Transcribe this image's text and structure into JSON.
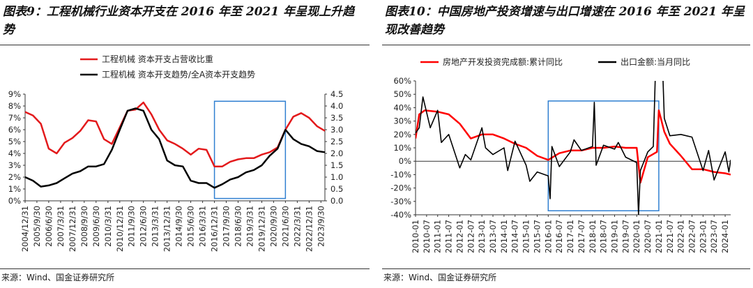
{
  "panel1": {
    "title": "图表9：工程机械行业资本开支在 2016 年至 2021 年呈现上升趋势",
    "source": "来源：Wind、国金证券研究所",
    "chart_data": {
      "type": "line",
      "x": [
        "2004/12/31",
        "2005/6/30",
        "2005/12/31",
        "2006/6/30",
        "2006/12/31",
        "2007/6/30",
        "2007/12/31",
        "2008/6/30",
        "2008/12/31",
        "2009/6/30",
        "2009/12/31",
        "2010/6/30",
        "2010/12/31",
        "2011/6/30",
        "2011/12/31",
        "2012/6/30",
        "2012/12/31",
        "2013/6/30",
        "2013/12/31",
        "2014/6/30",
        "2014/12/31",
        "2015/6/30",
        "2015/12/31",
        "2016/6/30",
        "2016/12/31",
        "2017/6/30",
        "2017/12/31",
        "2018/6/30",
        "2018/12/31",
        "2019/6/30",
        "2019/12/31",
        "2020/6/30",
        "2020/12/31",
        "2021/6/30",
        "2021/12/31",
        "2022/6/30",
        "2022/12/31",
        "2023/6/30",
        "2023/12/31"
      ],
      "xticks": [
        "2004/12/31",
        "2005/9/30",
        "2006/6/30",
        "2007/3/31",
        "2007/12/31",
        "2008/9/30",
        "2009/6/30",
        "2010/3/31",
        "2010/12/31",
        "2011/9/30",
        "2012/6/30",
        "2013/3/31",
        "2013/12/31",
        "2014/9/30",
        "2015/6/30",
        "2016/3/31",
        "2016/12/31",
        "2017/9/30",
        "2018/6/30",
        "2019/3/31",
        "2019/12/31",
        "2020/9/30",
        "2021/6/30",
        "2022/3/31",
        "2022/12/31",
        "2023/9/30"
      ],
      "series": [
        {
          "name": "工程机械 资本开支占营收比重",
          "axis": "left",
          "color": "#e31a1c",
          "values": [
            7.5,
            7.2,
            6.5,
            4.4,
            4.0,
            4.9,
            5.3,
            5.9,
            6.8,
            6.7,
            5.2,
            4.8,
            6.2,
            7.6,
            7.7,
            8.3,
            7.3,
            6.0,
            5.1,
            4.8,
            4.4,
            3.9,
            4.4,
            4.3,
            2.9,
            2.9,
            3.3,
            3.5,
            3.6,
            3.6,
            3.9,
            4.1,
            4.5,
            6.0,
            7.1,
            7.4,
            7.0,
            6.3,
            5.9
          ]
        },
        {
          "name": "工程机械 资本开支趋势/全A资本开支趋势",
          "axis": "right",
          "color": "#000000",
          "values": [
            1.0,
            0.85,
            0.6,
            0.65,
            0.75,
            0.95,
            1.15,
            1.25,
            1.45,
            1.45,
            1.55,
            2.15,
            3.0,
            3.8,
            3.9,
            3.8,
            3.0,
            2.6,
            1.7,
            1.5,
            1.45,
            0.85,
            0.75,
            0.75,
            0.55,
            0.7,
            0.9,
            1.0,
            1.2,
            1.3,
            1.5,
            1.9,
            2.2,
            3.0,
            2.6,
            2.4,
            2.3,
            2.1,
            2.05
          ]
        }
      ],
      "y_left": {
        "ticks": [
          "0%",
          "1%",
          "2%",
          "3%",
          "4%",
          "5%",
          "6%",
          "7%",
          "8%",
          "9%"
        ],
        "ylim": [
          0,
          9
        ]
      },
      "y_right": {
        "ticks": [
          "0.0",
          "0.5",
          "1.0",
          "1.5",
          "2.0",
          "2.5",
          "3.0",
          "3.5",
          "4.0",
          "4.5"
        ],
        "ylim": [
          0,
          4.5
        ]
      },
      "highlight": {
        "from": "2016/12/31",
        "to": "2021/6/30",
        "color": "#2f7fd1"
      },
      "legend_placement": "top-left",
      "grid": false
    }
  },
  "panel2": {
    "title": "图表10：中国房地产投资增速与出口增速在 2016 年至 2021 年呈现改善趋势",
    "source": "来源：Wind、国金证券研究所",
    "chart_data": {
      "type": "line",
      "xticks": [
        "2010-01",
        "2010-07",
        "2011-01",
        "2011-07",
        "2012-01",
        "2012-07",
        "2013-01",
        "2013-07",
        "2014-01",
        "2014-07",
        "2015-01",
        "2015-07",
        "2016-01",
        "2016-07",
        "2017-01",
        "2017-07",
        "2018-01",
        "2018-07",
        "2019-01",
        "2019-07",
        "2020-01",
        "2020-07",
        "2021-01",
        "2021-07",
        "2022-01",
        "2022-07",
        "2023-01",
        "2023-07",
        "2024-01"
      ],
      "x_range": [
        "2010-01",
        "2024-04"
      ],
      "series": [
        {
          "name": "房地产开发投资完成额:累计同比",
          "color": "#ff0000",
          "points": [
            [
              "2010-01",
              17
            ],
            [
              "2010-03",
              35
            ],
            [
              "2010-06",
              38
            ],
            [
              "2011-01",
              37
            ],
            [
              "2011-07",
              35
            ],
            [
              "2012-01",
              28
            ],
            [
              "2012-07",
              17
            ],
            [
              "2013-01",
              20
            ],
            [
              "2013-07",
              20
            ],
            [
              "2014-01",
              17
            ],
            [
              "2014-07",
              13
            ],
            [
              "2015-01",
              10
            ],
            [
              "2015-07",
              4
            ],
            [
              "2016-01",
              1
            ],
            [
              "2016-07",
              6
            ],
            [
              "2017-01",
              8
            ],
            [
              "2017-07",
              8
            ],
            [
              "2018-01",
              10
            ],
            [
              "2018-07",
              10
            ],
            [
              "2019-01",
              11
            ],
            [
              "2019-07",
              10
            ],
            [
              "2020-01",
              10
            ],
            [
              "2020-03",
              -16
            ],
            [
              "2020-07",
              3
            ],
            [
              "2020-12",
              7
            ],
            [
              "2021-01",
              38
            ],
            [
              "2021-04",
              22
            ],
            [
              "2021-07",
              13
            ],
            [
              "2022-01",
              4
            ],
            [
              "2022-07",
              -6
            ],
            [
              "2023-01",
              -6
            ],
            [
              "2023-07",
              -8
            ],
            [
              "2024-01",
              -9
            ],
            [
              "2024-04",
              -10
            ]
          ]
        },
        {
          "name": "出口金额:当月同比",
          "color": "#000000",
          "points": [
            [
              "2010-01",
              21
            ],
            [
              "2010-03",
              25
            ],
            [
              "2010-05",
              48
            ],
            [
              "2010-09",
              25
            ],
            [
              "2011-01",
              38
            ],
            [
              "2011-03",
              14
            ],
            [
              "2011-07",
              20
            ],
            [
              "2012-01",
              -5
            ],
            [
              "2012-04",
              5
            ],
            [
              "2012-07",
              1
            ],
            [
              "2013-01",
              25
            ],
            [
              "2013-03",
              10
            ],
            [
              "2013-07",
              5
            ],
            [
              "2014-01",
              10
            ],
            [
              "2014-03",
              -7
            ],
            [
              "2014-07",
              15
            ],
            [
              "2015-01",
              -3
            ],
            [
              "2015-03",
              -15
            ],
            [
              "2015-07",
              -8
            ],
            [
              "2016-01",
              -11
            ],
            [
              "2016-02",
              -28
            ],
            [
              "2016-03",
              11
            ],
            [
              "2016-07",
              -4
            ],
            [
              "2017-01",
              7
            ],
            [
              "2017-03",
              16
            ],
            [
              "2017-07",
              8
            ],
            [
              "2018-01",
              11
            ],
            [
              "2018-02",
              44
            ],
            [
              "2018-03",
              -3
            ],
            [
              "2018-07",
              12
            ],
            [
              "2019-01",
              9
            ],
            [
              "2019-03",
              14
            ],
            [
              "2019-07",
              3
            ],
            [
              "2020-01",
              -1
            ],
            [
              "2020-02",
              -40
            ],
            [
              "2020-03",
              -7
            ],
            [
              "2020-07",
              7
            ],
            [
              "2020-10",
              11
            ],
            [
              "2021-01",
              155
            ],
            [
              "2021-04",
              32
            ],
            [
              "2021-07",
              19
            ],
            [
              "2022-01",
              20
            ],
            [
              "2022-07",
              18
            ],
            [
              "2023-01",
              -7
            ],
            [
              "2023-04",
              8
            ],
            [
              "2023-07",
              -14
            ],
            [
              "2024-01",
              7
            ],
            [
              "2024-03",
              -8
            ],
            [
              "2024-04",
              1
            ]
          ]
        }
      ],
      "y": {
        "ticks": [
          "60%",
          "50%",
          "40%",
          "30%",
          "20%",
          "10%",
          "0%",
          "-10%",
          "-20%",
          "-30%",
          "-40%"
        ],
        "ylim": [
          -40,
          60
        ]
      },
      "highlight": {
        "from": "2016-01",
        "to": "2021-01",
        "y": [
          -37,
          45
        ],
        "color": "#2f7fd1"
      },
      "legend_placement": "top",
      "grid": false
    }
  }
}
